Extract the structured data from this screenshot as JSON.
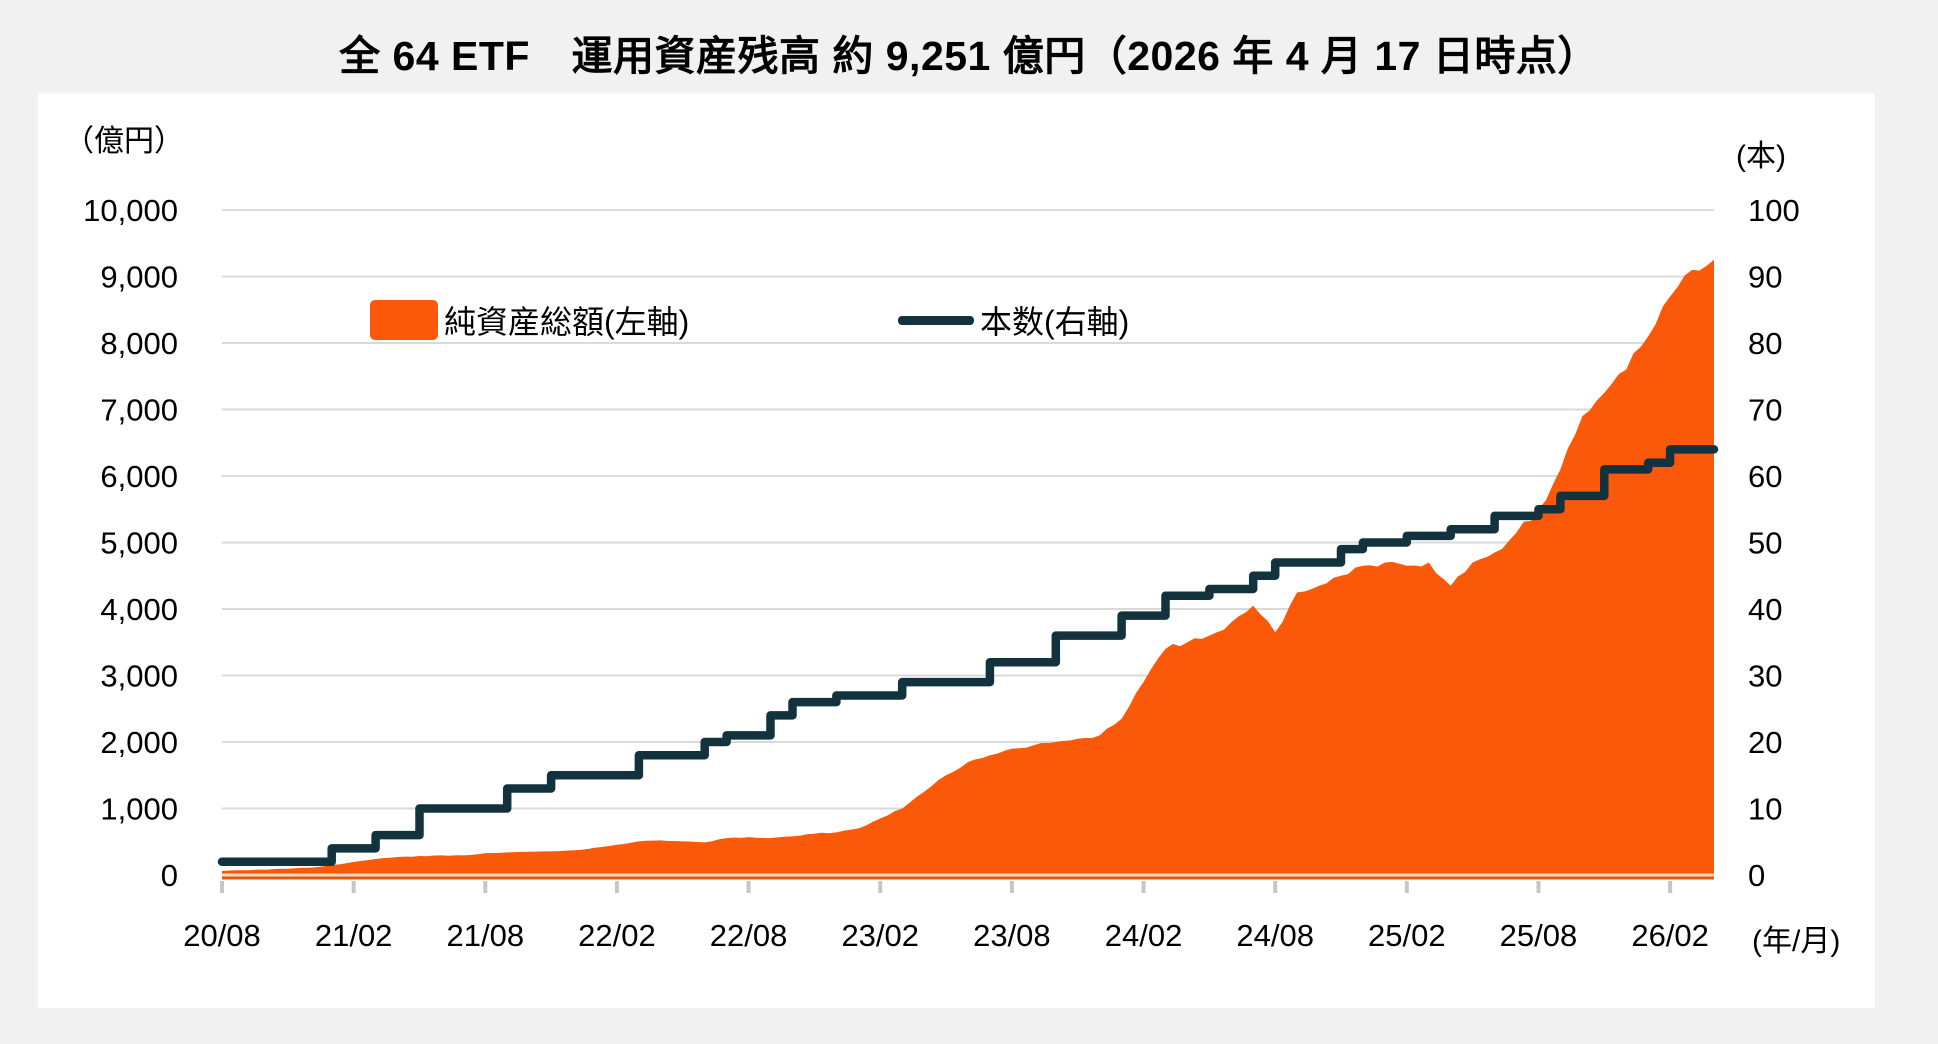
{
  "title": "全 64 ETF　運用資産残高 約 9,251 億円（2026 年 4 月 17 日時点）",
  "legend": [
    {
      "label": "純資産総額(左軸)",
      "type": "area",
      "color": "#F95908"
    },
    {
      "label": "本数(右軸)",
      "type": "line",
      "color": "#12323E"
    }
  ],
  "left_axis": {
    "unit_label": "（億円）",
    "tick_labels": [
      "0",
      "1,000",
      "2,000",
      "3,000",
      "4,000",
      "5,000",
      "6,000",
      "7,000",
      "8,000",
      "9,000",
      "10,000"
    ],
    "max": 10000
  },
  "right_axis": {
    "unit_label": "(本)",
    "tick_labels": [
      "0",
      "10",
      "20",
      "30",
      "40",
      "50",
      "60",
      "70",
      "80",
      "90",
      "100"
    ],
    "max": 100
  },
  "x_axis": {
    "unit_label": "(年/月)",
    "tick_labels": [
      "20/08",
      "21/02",
      "21/08",
      "22/02",
      "22/08",
      "23/02",
      "23/08",
      "24/02",
      "24/08",
      "25/02",
      "25/08",
      "26/02"
    ],
    "tick_interval_months": 6
  },
  "colors": {
    "area": "#F95908",
    "line": "#12323E",
    "grid": "#DADADA",
    "tick": "#C6C6C6",
    "axis_line": "#E0590A",
    "axis_highlight": "#FBD9BF",
    "panel": "#FFFFFF",
    "page_bg": "#F1F1F1"
  },
  "chart_data": {
    "type": "combo",
    "months_total": 68,
    "x_start_label": "20/08",
    "x_end_label": "26/04",
    "left_max": 10000,
    "right_max": 100,
    "area_series": {
      "name": "純資産総額(左軸)",
      "axis": "left",
      "unit": "億円",
      "monthly_values": [
        60,
        70,
        80,
        95,
        110,
        150,
        195,
        240,
        270,
        285,
        295,
        295,
        330,
        340,
        350,
        355,
        370,
        410,
        455,
        505,
        520,
        505,
        490,
        555,
        570,
        555,
        580,
        620,
        640,
        700,
        850,
        1000,
        1250,
        1500,
        1700,
        1800,
        1900,
        1950,
        2000,
        2050,
        2100,
        2350,
        2900,
        3400,
        3500,
        3600,
        3800,
        4050,
        3650,
        4250,
        4350,
        4500,
        4650,
        4700,
        4650,
        4700,
        4350,
        4700,
        4850,
        5150,
        5500,
        6100,
        6900,
        7250,
        7600,
        8100,
        8700,
        9100,
        9251
      ],
      "final_value": 9251
    },
    "line_series": {
      "name": "本数(右軸)",
      "axis": "right",
      "unit": "本",
      "step_points": [
        [
          0,
          2
        ],
        [
          5,
          4
        ],
        [
          7,
          6
        ],
        [
          9,
          10
        ],
        [
          13,
          13
        ],
        [
          15,
          15
        ],
        [
          19,
          18
        ],
        [
          22,
          20
        ],
        [
          23,
          21
        ],
        [
          25,
          24
        ],
        [
          26,
          26
        ],
        [
          28,
          27
        ],
        [
          31,
          29
        ],
        [
          35,
          32
        ],
        [
          38,
          36
        ],
        [
          41,
          39
        ],
        [
          43,
          42
        ],
        [
          45,
          43
        ],
        [
          47,
          45
        ],
        [
          48,
          47
        ],
        [
          51,
          49
        ],
        [
          52,
          50
        ],
        [
          54,
          51
        ],
        [
          56,
          52
        ],
        [
          58,
          54
        ],
        [
          60,
          55
        ],
        [
          61,
          57
        ],
        [
          63,
          61
        ],
        [
          65,
          62
        ],
        [
          66,
          64
        ]
      ],
      "final_value": 64
    }
  }
}
